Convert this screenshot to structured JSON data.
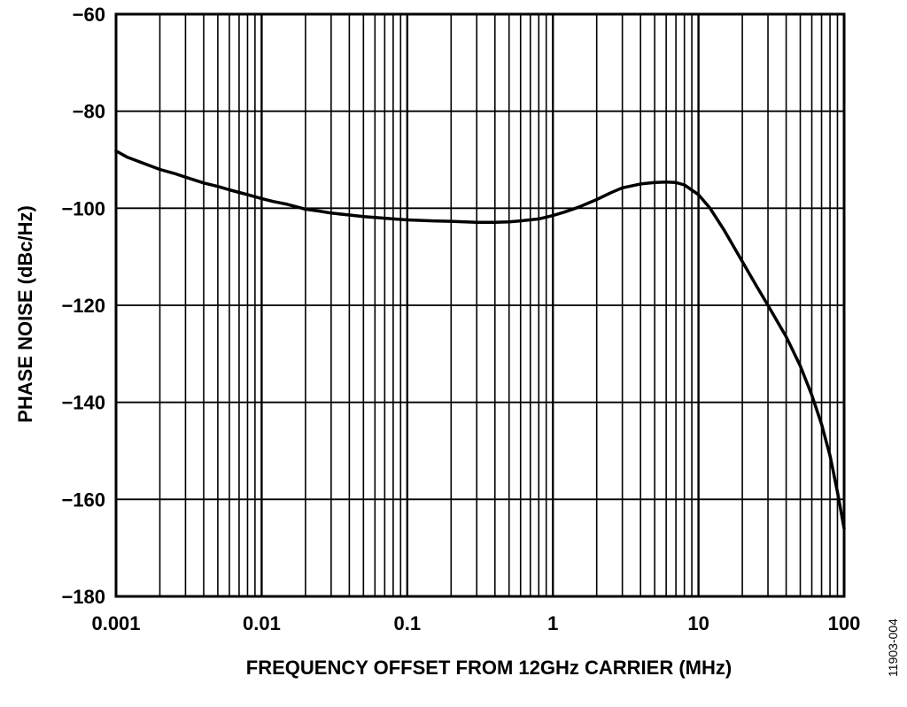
{
  "figure_id": "11903-004",
  "chart_data": {
    "type": "line",
    "title": "",
    "xlabel": "FREQUENCY OFFSET FROM 12GHz CARRIER (MHz)",
    "ylabel": "PHASE NOISE (dBc/Hz)",
    "x_scale": "log",
    "xlim": [
      0.001,
      100
    ],
    "ylim": [
      -180,
      -60
    ],
    "grid": true,
    "x_ticks": [
      0.001,
      0.01,
      0.1,
      1,
      10,
      100
    ],
    "x_tick_labels": [
      "0.001",
      "0.01",
      "0.1",
      "1",
      "10",
      "100"
    ],
    "y_ticks": [
      -60,
      -80,
      -100,
      -120,
      -140,
      -160,
      -180
    ],
    "y_tick_labels": [
      "−60",
      "−80",
      "−100",
      "−120",
      "−140",
      "−160",
      "−180"
    ],
    "line_color": "#000000",
    "series": [
      {
        "x": [
          0.001,
          0.0012,
          0.0015,
          0.002,
          0.0025,
          0.003,
          0.004,
          0.005,
          0.006,
          0.008,
          0.01,
          0.012,
          0.015,
          0.02,
          0.025,
          0.03,
          0.04,
          0.05,
          0.06,
          0.08,
          0.1,
          0.12,
          0.15,
          0.2,
          0.25,
          0.3,
          0.4,
          0.5,
          0.6,
          0.8,
          1,
          1.2,
          1.5,
          2,
          2.5,
          3,
          4,
          5,
          6,
          7,
          8,
          10,
          12,
          15,
          20,
          25,
          30,
          40,
          50,
          60,
          70,
          80,
          90,
          100
        ],
        "y": [
          -88.2,
          -89.5,
          -90.6,
          -92.0,
          -92.8,
          -93.6,
          -94.8,
          -95.5,
          -96.2,
          -97.2,
          -98.0,
          -98.6,
          -99.2,
          -100.2,
          -100.6,
          -101.0,
          -101.4,
          -101.7,
          -101.9,
          -102.2,
          -102.4,
          -102.5,
          -102.6,
          -102.7,
          -102.8,
          -102.9,
          -102.9,
          -102.8,
          -102.6,
          -102.2,
          -101.5,
          -100.8,
          -99.8,
          -98.2,
          -96.8,
          -95.8,
          -95.0,
          -94.7,
          -94.6,
          -94.7,
          -95.2,
          -97.2,
          -100.0,
          -104.5,
          -111.0,
          -116.0,
          -120.0,
          -126.5,
          -132.5,
          -138.5,
          -144.5,
          -151.0,
          -158.5,
          -166.0
        ]
      }
    ]
  }
}
